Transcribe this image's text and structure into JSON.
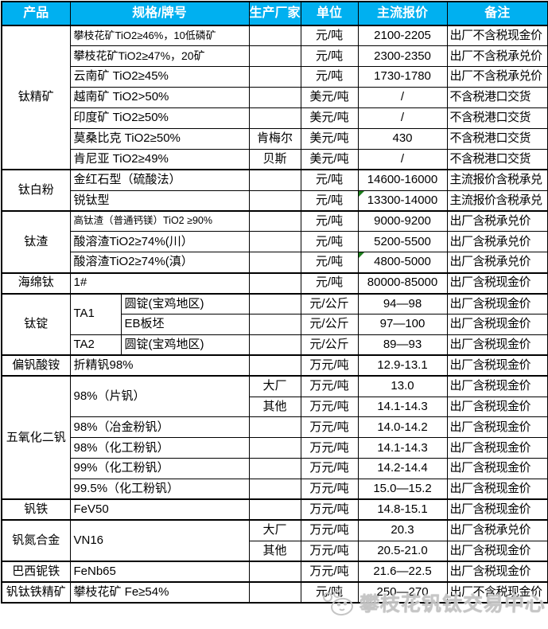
{
  "table": {
    "headers": [
      "产品",
      "规格/牌号",
      "生产厂家",
      "单位",
      "主流报价",
      "备注"
    ],
    "header_bg_color": "#00B0F0",
    "flag_color": "#1d7f1d",
    "groups": [
      {
        "product": "钛精矿",
        "rows": [
          {
            "spec": "攀枝花矿TiO2≥46%，10低磷矿",
            "spec_size": 13,
            "maker": "",
            "unit": "元/吨",
            "price": "2100-2205",
            "note": "出厂不含税现金价"
          },
          {
            "spec": "攀枝花矿TiO2≥47%，20矿",
            "spec_size": 14,
            "maker": "",
            "unit": "元/吨",
            "price": "2300-2350",
            "note": "出厂不含税承兑价"
          },
          {
            "spec": "云南矿 TiO2≥45%",
            "maker": "",
            "unit": "元/吨",
            "price": "1730-1780",
            "note": "出厂不含税承兑价"
          },
          {
            "spec": "越南矿 TiO2>50%",
            "maker": "",
            "unit": "美元/吨",
            "price": "/",
            "note": "不含税港口交货"
          },
          {
            "spec": "印度矿 TiO2≥50%",
            "maker": "",
            "unit": "美元/吨",
            "price": "/",
            "note": "不含税港口交货"
          },
          {
            "spec": "莫桑比克 TiO2≥50%",
            "maker": "肯梅尔",
            "unit": "美元/吨",
            "price": "430",
            "note": "不含税港口交货"
          },
          {
            "spec": "肯尼亚 TiO2≥49%",
            "maker": "贝斯",
            "unit": "美元/吨",
            "price": "/",
            "note": "不含税港口交货"
          }
        ]
      },
      {
        "product": "钛白粉",
        "rows": [
          {
            "spec": "金红石型（硫酸法）",
            "maker": "",
            "unit": "元/吨",
            "price": "14600-16000",
            "note": "主流报价含税承兑"
          },
          {
            "spec": "锐钛型",
            "maker": "",
            "unit": "元/吨",
            "price": "13300-14000",
            "note": "主流报价含税承兑",
            "flag": true
          }
        ]
      },
      {
        "product": "钛渣",
        "rows": [
          {
            "spec": "高钛渣（普通钙镁）TiO2 ≥90%",
            "spec_size": 12.5,
            "maker": "",
            "unit": "元/吨",
            "price": "9000-9200",
            "note": "出厂含税承兑价"
          },
          {
            "spec": "酸溶渣TiO2≥74%(川）",
            "maker": "",
            "unit": "元/吨",
            "price": "5200-5500",
            "note": "出厂含税承兑价"
          },
          {
            "spec": "酸溶渣TiO2≥74%(滇）",
            "maker": "",
            "unit": "元/吨",
            "price": "4800-5000",
            "note": "出厂含税承兑价",
            "flag": true
          }
        ]
      },
      {
        "product": "海绵钛",
        "rows": [
          {
            "spec": "1#",
            "maker": "",
            "unit": "元/吨",
            "price": "80000-85000",
            "note": "出厂含税现金价"
          }
        ]
      },
      {
        "product": "钛锭",
        "rows": [
          {
            "spec": "TA1",
            "spec_span": 2,
            "spec2": "圆锭(宝鸡地区)",
            "maker": "",
            "unit": "元/公斤",
            "price": "94—98",
            "note": "出厂含税现金价"
          },
          {
            "spec_skip": true,
            "spec2": "EB板坯",
            "maker": "",
            "unit": "元/公斤",
            "price": "97—100",
            "note": "出厂含税现金价"
          },
          {
            "spec": "TA2",
            "spec2": "圆锭(宝鸡地区)",
            "maker": "",
            "unit": "元/公斤",
            "price": "89—93",
            "note": "出厂含税现金价"
          }
        ]
      },
      {
        "product": "偏钒酸铵",
        "rows": [
          {
            "spec": "折精钒98%",
            "maker": "",
            "unit": "万元/吨",
            "price": "12.9-13.1",
            "note": "出厂含税现金价"
          }
        ]
      },
      {
        "product": "五氧化二钒",
        "rows": [
          {
            "spec": "98%（片钒）",
            "spec_span": 2,
            "maker": "大厂",
            "unit": "万元/吨",
            "price": "13.0",
            "note": "出厂含税现金价"
          },
          {
            "spec_skip": true,
            "maker": "其他",
            "unit": "万元/吨",
            "price": "14.1-14.3",
            "note": "出厂含税现金价"
          },
          {
            "spec": "98%（冶金粉钒）",
            "maker": "",
            "unit": "万元/吨",
            "price": "14.0-14.2",
            "note": "出厂含税现金价"
          },
          {
            "spec": "98%（化工粉钒）",
            "maker": "",
            "unit": "万元/吨",
            "price": "14.1-14.3",
            "note": "出厂含税现金价"
          },
          {
            "spec": "99%（化工粉钒）",
            "maker": "",
            "unit": "万元/吨",
            "price": "14.2-14.4",
            "note": "出厂含税现金价"
          },
          {
            "spec": "99.5%（化工粉钒）",
            "maker": "",
            "unit": "万元/吨",
            "price": "15.0—15.2",
            "note": "出厂含税现金价"
          }
        ]
      },
      {
        "product": "钒铁",
        "rows": [
          {
            "spec": "FeV50",
            "maker": "",
            "unit": "万元/吨",
            "price": "14.8-15.1",
            "note": "出厂含税现金价"
          }
        ]
      },
      {
        "product": "钒氮合金",
        "rows": [
          {
            "spec": "VN16",
            "spec_span": 2,
            "maker": "大厂",
            "unit": "万元/吨",
            "price": "20.3",
            "note": "出厂含税承兑价"
          },
          {
            "spec_skip": true,
            "maker": "其他",
            "unit": "万元/吨",
            "price": "20.5-21.0",
            "note": "出厂含税现金价"
          }
        ]
      },
      {
        "product": "巴西铌铁",
        "rows": [
          {
            "spec": "FeNb65",
            "maker": "",
            "unit": "万元/吨",
            "price": "21.6—22.5",
            "note": "出厂含税现金价"
          }
        ]
      },
      {
        "product": "钒钛铁精矿",
        "rows": [
          {
            "spec": "攀枝花矿 Fe≥54%",
            "maker": "",
            "unit": "元/吨",
            "price": "250—270",
            "note": "出厂不含税现金价"
          }
        ]
      }
    ]
  },
  "watermark": {
    "text": "攀枝花钒钛交易中心",
    "icon": "panda-logo-icon",
    "color": "#c4c4c4"
  }
}
